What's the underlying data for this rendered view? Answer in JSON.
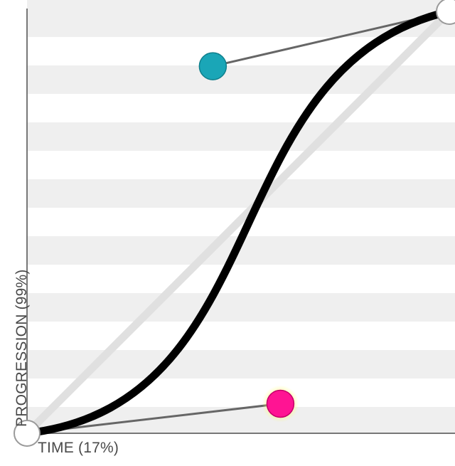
{
  "axes": {
    "x_label": "TIME",
    "x_value": "17%",
    "y_label": "PROGRESSION",
    "y_value": "99%"
  },
  "curve": {
    "type": "cubic-bezier",
    "control_point_1": [
      0.6,
      0.07
    ],
    "control_point_2": [
      0.44,
      0.87
    ]
  },
  "handles": {
    "p1_color": "#ff1493",
    "p1_glow_color": "#ffff66",
    "p2_color": "#1aa6b7",
    "endpoint_color": "#ffffff"
  },
  "colors": {
    "stripe": "#efefef",
    "axis": "#777777",
    "curve": "#000000",
    "linear_guide": "#e0e0e0",
    "control_line": "#666666"
  }
}
